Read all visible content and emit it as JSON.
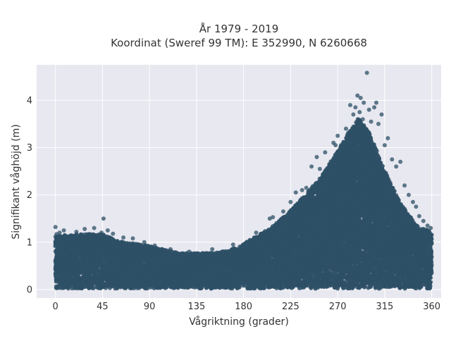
{
  "chart_data": {
    "type": "scatter",
    "title": "År 1979 - 2019",
    "subtitle": "Koordinat (Sweref 99 TM): E 352990, N 6260668",
    "xlabel": "Vågriktning (grader)",
    "ylabel": "Signifikant våghöjd (m)",
    "xlim": [
      -18,
      369
    ],
    "ylim": [
      -0.18,
      4.75
    ],
    "xticks": [
      0,
      45,
      90,
      135,
      180,
      225,
      270,
      315,
      360
    ],
    "yticks": [
      0,
      1,
      2,
      3,
      4
    ],
    "grid": true,
    "background": "#e8e8f0",
    "grid_color": "#ffffff",
    "marker_color": "#2e5066",
    "envelope_note": "upper envelope of dense point cloud (direction deg → Hs m); lower bound ≈ 0",
    "envelope": [
      {
        "x": 0,
        "upper": 1.1
      },
      {
        "x": 15,
        "upper": 1.15
      },
      {
        "x": 30,
        "upper": 1.15
      },
      {
        "x": 45,
        "upper": 1.15
      },
      {
        "x": 60,
        "upper": 1.0
      },
      {
        "x": 75,
        "upper": 0.95
      },
      {
        "x": 90,
        "upper": 0.9
      },
      {
        "x": 105,
        "upper": 0.82
      },
      {
        "x": 120,
        "upper": 0.75
      },
      {
        "x": 135,
        "upper": 0.75
      },
      {
        "x": 150,
        "upper": 0.75
      },
      {
        "x": 165,
        "upper": 0.8
      },
      {
        "x": 180,
        "upper": 0.95
      },
      {
        "x": 195,
        "upper": 1.15
      },
      {
        "x": 210,
        "upper": 1.35
      },
      {
        "x": 225,
        "upper": 1.65
      },
      {
        "x": 240,
        "upper": 2.0
      },
      {
        "x": 255,
        "upper": 2.4
      },
      {
        "x": 270,
        "upper": 2.9
      },
      {
        "x": 280,
        "upper": 3.3
      },
      {
        "x": 290,
        "upper": 3.6
      },
      {
        "x": 300,
        "upper": 3.3
      },
      {
        "x": 315,
        "upper": 2.5
      },
      {
        "x": 330,
        "upper": 1.8
      },
      {
        "x": 345,
        "upper": 1.35
      },
      {
        "x": 360,
        "upper": 1.2
      }
    ],
    "outliers": [
      {
        "x": 0,
        "y": 1.32
      },
      {
        "x": 1,
        "y": 1.17
      },
      {
        "x": 4,
        "y": 1.2
      },
      {
        "x": 8,
        "y": 1.25
      },
      {
        "x": 12,
        "y": 1.12
      },
      {
        "x": 20,
        "y": 1.22
      },
      {
        "x": 28,
        "y": 1.28
      },
      {
        "x": 37,
        "y": 1.3
      },
      {
        "x": 44,
        "y": 1.2
      },
      {
        "x": 46,
        "y": 1.5
      },
      {
        "x": 50,
        "y": 1.25
      },
      {
        "x": 55,
        "y": 1.18
      },
      {
        "x": 65,
        "y": 1.1
      },
      {
        "x": 74,
        "y": 1.08
      },
      {
        "x": 85,
        "y": 1.0
      },
      {
        "x": 95,
        "y": 0.93
      },
      {
        "x": 110,
        "y": 0.85
      },
      {
        "x": 128,
        "y": 0.8
      },
      {
        "x": 150,
        "y": 0.85
      },
      {
        "x": 170,
        "y": 0.95
      },
      {
        "x": 192,
        "y": 1.2
      },
      {
        "x": 205,
        "y": 1.5
      },
      {
        "x": 208,
        "y": 1.53
      },
      {
        "x": 218,
        "y": 1.65
      },
      {
        "x": 225,
        "y": 1.85
      },
      {
        "x": 230,
        "y": 2.05
      },
      {
        "x": 236,
        "y": 2.1
      },
      {
        "x": 240,
        "y": 2.15
      },
      {
        "x": 245,
        "y": 2.6
      },
      {
        "x": 250,
        "y": 2.8
      },
      {
        "x": 253,
        "y": 2.55
      },
      {
        "x": 258,
        "y": 2.9
      },
      {
        "x": 262,
        "y": 2.65
      },
      {
        "x": 266,
        "y": 3.1
      },
      {
        "x": 268,
        "y": 3.05
      },
      {
        "x": 270,
        "y": 3.25
      },
      {
        "x": 274,
        "y": 3.0
      },
      {
        "x": 278,
        "y": 3.4
      },
      {
        "x": 282,
        "y": 3.9
      },
      {
        "x": 285,
        "y": 3.7
      },
      {
        "x": 287,
        "y": 3.85
      },
      {
        "x": 289,
        "y": 4.1
      },
      {
        "x": 291,
        "y": 3.75
      },
      {
        "x": 292,
        "y": 4.05
      },
      {
        "x": 294,
        "y": 3.6
      },
      {
        "x": 295,
        "y": 3.95
      },
      {
        "x": 298,
        "y": 4.58
      },
      {
        "x": 300,
        "y": 3.8
      },
      {
        "x": 302,
        "y": 3.55
      },
      {
        "x": 305,
        "y": 3.85
      },
      {
        "x": 307,
        "y": 3.95
      },
      {
        "x": 309,
        "y": 3.5
      },
      {
        "x": 312,
        "y": 3.7
      },
      {
        "x": 315,
        "y": 3.05
      },
      {
        "x": 318,
        "y": 3.2
      },
      {
        "x": 322,
        "y": 2.75
      },
      {
        "x": 326,
        "y": 2.6
      },
      {
        "x": 330,
        "y": 2.7
      },
      {
        "x": 334,
        "y": 2.2
      },
      {
        "x": 338,
        "y": 2.0
      },
      {
        "x": 342,
        "y": 1.85
      },
      {
        "x": 345,
        "y": 1.75
      },
      {
        "x": 348,
        "y": 1.55
      },
      {
        "x": 352,
        "y": 1.45
      },
      {
        "x": 356,
        "y": 1.35
      },
      {
        "x": 359,
        "y": 1.3
      }
    ]
  }
}
